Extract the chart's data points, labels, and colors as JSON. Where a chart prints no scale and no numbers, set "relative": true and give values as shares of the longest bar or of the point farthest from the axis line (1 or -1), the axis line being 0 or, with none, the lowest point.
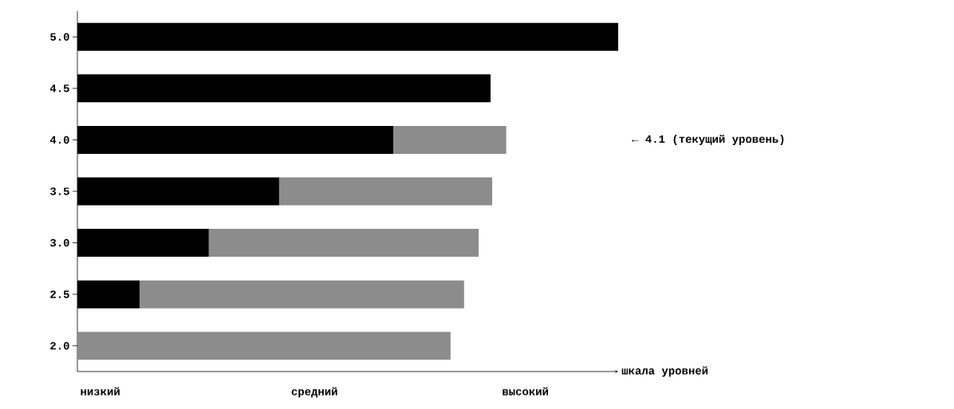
{
  "chart_data": {
    "type": "bar",
    "orientation": "horizontal",
    "stacked": true,
    "relative": true,
    "xlabel": "шкала уровней",
    "categories": [
      "5.0",
      "4.5",
      "4.0",
      "3.5",
      "3.0",
      "2.5",
      "2.0"
    ],
    "series": [
      {
        "color": "#000000",
        "values": [
          1.0,
          0.764,
          0.584,
          0.373,
          0.243,
          0.115,
          0
        ]
      },
      {
        "color": "#8c8c8c",
        "values": [
          0,
          0,
          0.209,
          0.394,
          0.499,
          0.6,
          0.69
        ]
      }
    ],
    "annotations": [
      "← 4.1 (текущий уровень)",
      "низкий",
      "средний",
      "высокий"
    ]
  }
}
